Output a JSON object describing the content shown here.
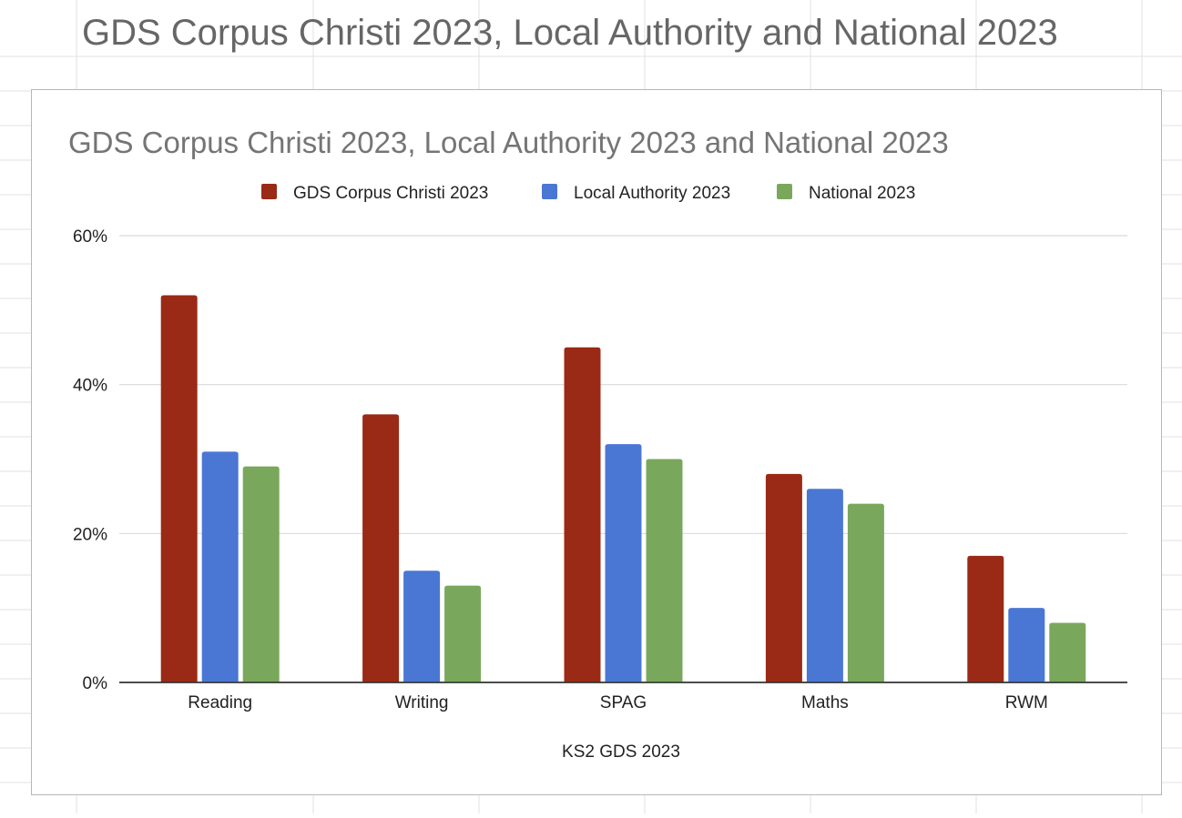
{
  "sheet": {
    "title": "GDS Corpus Christi 2023, Local Authority and National 2023"
  },
  "chart_data": {
    "type": "bar",
    "title": "GDS Corpus Christi 2023, Local Authority 2023 and National 2023",
    "xlabel": "KS2 GDS 2023",
    "ylabel": "",
    "categories": [
      "Reading",
      "Writing",
      "SPAG",
      "Maths",
      "RWM"
    ],
    "series": [
      {
        "name": "GDS Corpus Christi 2023",
        "color": "#9a2a15",
        "values": [
          0.52,
          0.36,
          0.45,
          0.28,
          0.17
        ]
      },
      {
        "name": "Local Authority 2023",
        "color": "#4a77d4",
        "values": [
          0.31,
          0.15,
          0.32,
          0.26,
          0.1
        ]
      },
      {
        "name": "National 2023",
        "color": "#79a85c",
        "values": [
          0.29,
          0.13,
          0.3,
          0.24,
          0.08
        ]
      }
    ],
    "ylim": [
      0,
      0.6
    ],
    "yticks": [
      "0%",
      "20%",
      "40%",
      "60%"
    ],
    "ytick_values": [
      0,
      0.2,
      0.4,
      0.6
    ],
    "legend_position": "top",
    "grid": true
  }
}
